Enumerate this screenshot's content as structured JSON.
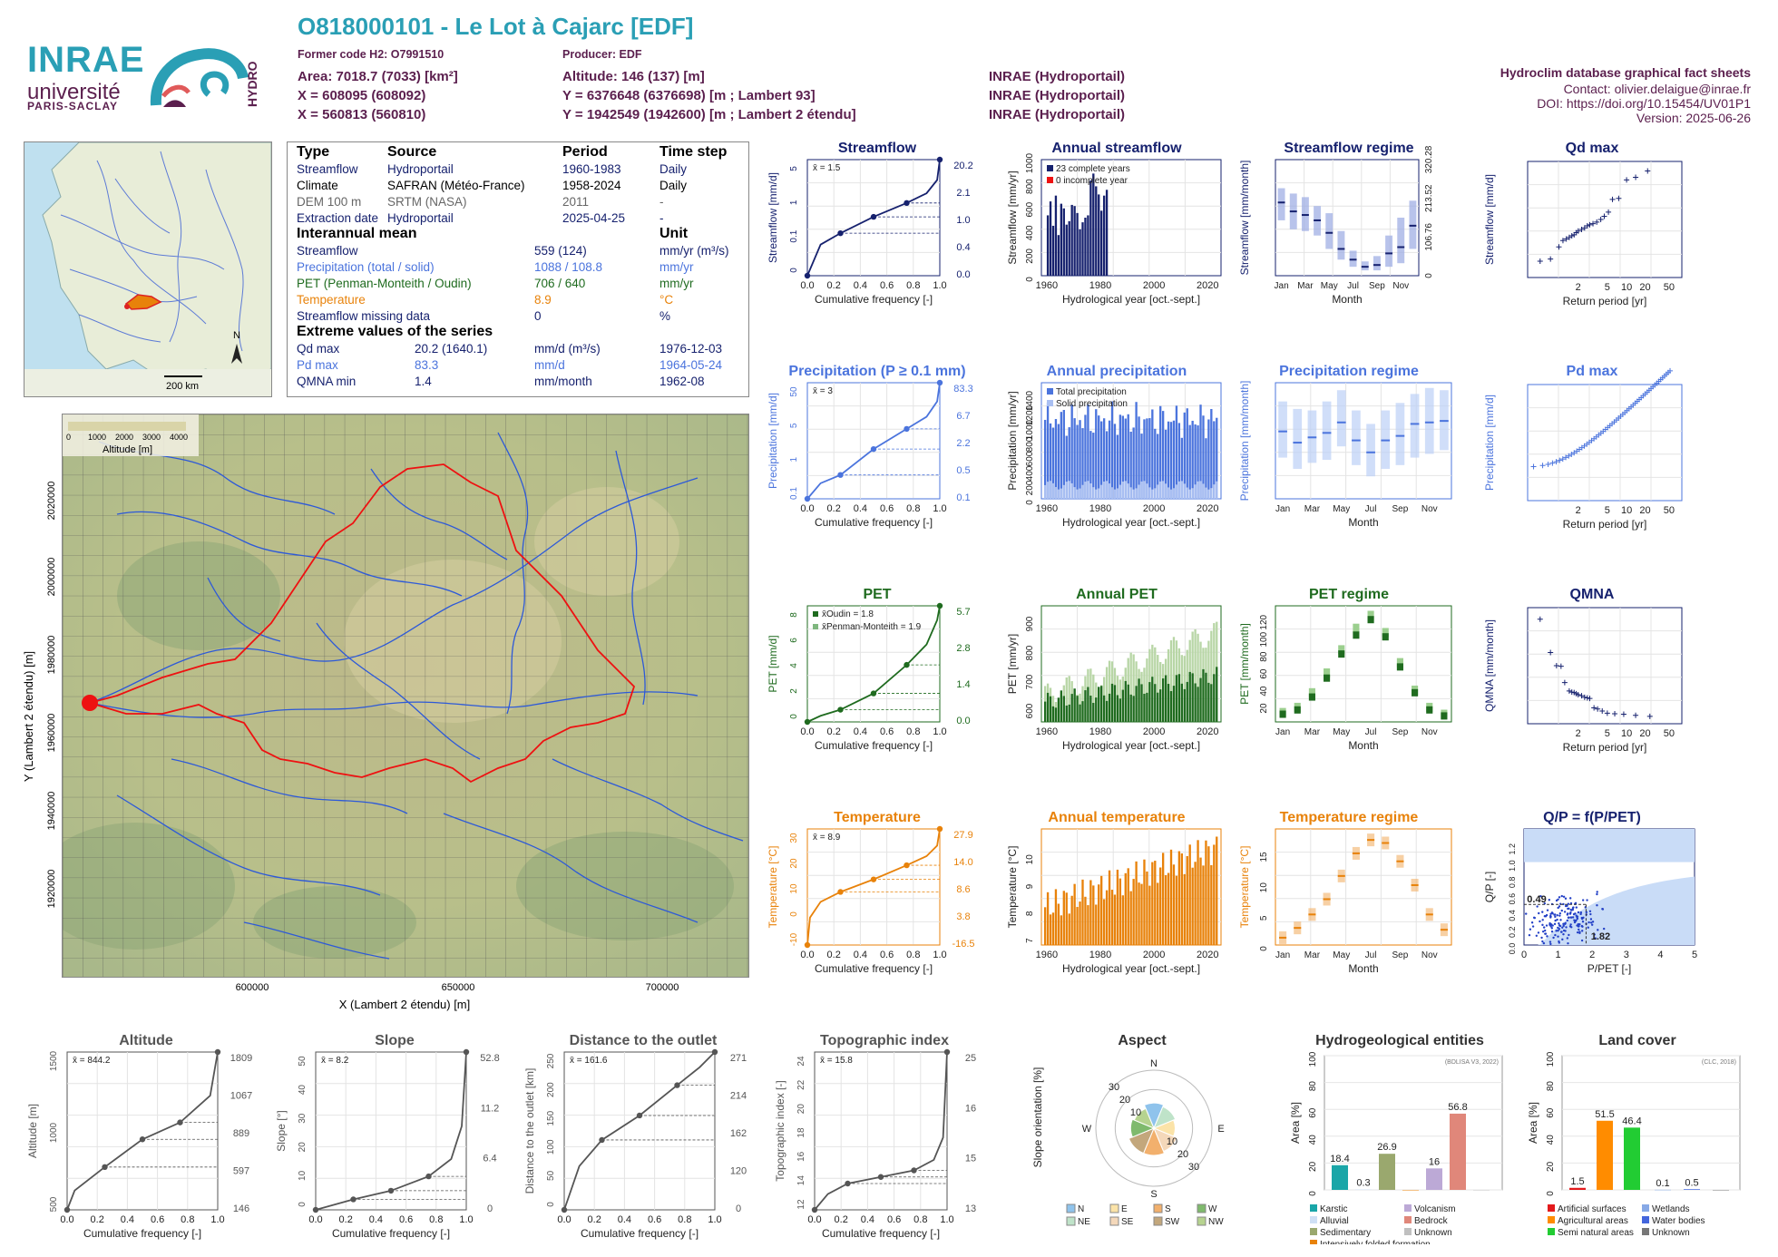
{
  "header": {
    "logo_inrae": "INRAE",
    "logo_univ": "université",
    "logo_ps": "PARIS-SACLAY",
    "logo_hydro": "HYDRO",
    "title": "O818000101 - Le Lot à Cajarc [EDF]",
    "former_code": "Former code H2: O7991510",
    "producer": "Producer: EDF",
    "area": "Area: 7018.7 (7033) [km²]",
    "x_l93": "X = 608095 (608092)",
    "x_l2": "X = 560813 (560810)",
    "altitude": "Altitude: 146 (137) [m]",
    "y_l93": "Y = 6376648 (6376698) [m ; Lambert 93]",
    "y_l2": "Y = 1942549 (1942600) [m ; Lambert 2 étendu]",
    "src1": "INRAE (Hydroportail)",
    "src2": "INRAE (Hydroportail)",
    "src3": "INRAE (Hydroportail)",
    "db": "Hydroclim database graphical fact sheets",
    "contact": "Contact: olivier.delaigue@inrae.fr",
    "doi": "DOI: https://doi.org/10.15454/UV01P1",
    "version": "Version: 2025-06-26"
  },
  "info": {
    "h_type": "Type",
    "h_source": "Source",
    "h_period": "Period",
    "h_timestep": "Time step",
    "r1": [
      "Streamflow",
      "Hydroportail",
      "1960-1983",
      "Daily"
    ],
    "r2": [
      "Climate",
      "SAFRAN (Météo-France)",
      "1958-2024",
      "Daily"
    ],
    "r3": [
      "DEM 100 m",
      "SRTM (NASA)",
      "2011",
      "-"
    ],
    "r4": [
      "Extraction date",
      "Hydroportail",
      "2025-04-25",
      "-"
    ],
    "sec_mean": "Interannual mean",
    "sec_unit": "Unit",
    "m1": [
      "Streamflow",
      "559 (124)",
      "mm/yr (m³/s)"
    ],
    "m2": [
      "Precipitation (total / solid)",
      "1088 / 108.8",
      "mm/yr"
    ],
    "m3": [
      "PET (Penman-Monteith / Oudin)",
      "706 / 640",
      "mm/yr"
    ],
    "m4": [
      "Temperature",
      "8.9",
      "°C"
    ],
    "m5": [
      "Streamflow missing data",
      "0",
      "%"
    ],
    "sec_ext": "Extreme values of the series",
    "e1": [
      "Qd max",
      "20.2 (1640.1)",
      "mm/d (m³/s)",
      "1976-12-03"
    ],
    "e2": [
      "Pd max",
      "83.3",
      "mm/d",
      "1964-05-24"
    ],
    "e3": [
      "QMNA min",
      "1.4",
      "mm/month",
      "1962-08"
    ]
  },
  "minimap": {
    "scale": "200 km",
    "north": "N"
  },
  "bigmap": {
    "legend_title": "Altitude [m]",
    "legend_ticks": [
      "0",
      "1000",
      "2000",
      "3000",
      "4000"
    ],
    "xlabel": "X (Lambert 2 étendu) [m]",
    "ylabel": "Y (Lambert 2 étendu) [m]",
    "xticks": [
      "600000",
      "650000",
      "700000"
    ],
    "yticks": [
      "2020000",
      "2000000",
      "1980000",
      "1960000",
      "1940000",
      "1920000"
    ]
  },
  "colors": {
    "teal": "#2a9fb5",
    "plum": "#5b1f4e",
    "navy": "#16216e",
    "blue": "#4b74dd",
    "green": "#1f6b1f",
    "orange": "#e8820a"
  },
  "chart_data": [
    {
      "id": "streamflow_fdc",
      "type": "line",
      "title": "Streamflow",
      "xlabel": "Cumulative frequency [-]",
      "ylabel": "Streamflow [mm/d]",
      "mean_label": "x̄ = 1.5",
      "x": [
        0,
        0.1,
        0.25,
        0.5,
        0.75,
        0.9,
        0.98,
        1.0
      ],
      "y": [
        0.0,
        0.2,
        0.4,
        1.0,
        2.1,
        3.5,
        7,
        20.2
      ],
      "right_labels": [
        "20.2",
        "2.1",
        "1.0",
        "0.4",
        "0.0"
      ],
      "yticks": [
        "0",
        "0.1",
        "1",
        "5"
      ],
      "log": true
    },
    {
      "id": "annual_streamflow",
      "type": "bar",
      "title": "Annual streamflow",
      "xlabel": "Hydrological year [oct.-sept.]",
      "ylabel": "Streamflow [mm/yr]",
      "legend": [
        "23 complete years",
        "0 incomplete year"
      ],
      "x_start": 1960,
      "x": [
        1960,
        1961,
        1962,
        1963,
        1964,
        1965,
        1966,
        1967,
        1968,
        1969,
        1970,
        1971,
        1972,
        1973,
        1974,
        1975,
        1976,
        1977,
        1978,
        1979,
        1980,
        1981,
        1982
      ],
      "values": [
        520,
        640,
        430,
        690,
        350,
        620,
        580,
        440,
        470,
        610,
        600,
        540,
        400,
        460,
        500,
        520,
        820,
        880,
        770,
        700,
        560,
        690,
        740
      ],
      "ylim": [
        0,
        1000
      ],
      "xlim": [
        1958,
        2025
      ],
      "yticks": [
        "0",
        "200",
        "400",
        "600",
        "800",
        "1000"
      ],
      "xticks": [
        "1960",
        "1980",
        "2000",
        "2020"
      ]
    },
    {
      "id": "streamflow_regime",
      "type": "bar",
      "title": "Streamflow regime",
      "xlabel": "Month",
      "ylabel": "Streamflow [mm/month]",
      "categories": [
        "Jan",
        "Feb",
        "Mar",
        "Apr",
        "May",
        "Jun",
        "Jul",
        "Aug",
        "Sep",
        "Oct",
        "Nov",
        "Dec"
      ],
      "median": [
        82,
        72,
        68,
        62,
        48,
        30,
        18,
        10,
        12,
        25,
        32,
        56
      ],
      "q10": [
        62,
        52,
        50,
        45,
        30,
        18,
        10,
        6,
        6,
        10,
        14,
        30
      ],
      "q90": [
        98,
        92,
        88,
        78,
        70,
        50,
        28,
        16,
        22,
        45,
        65,
        84
      ],
      "ylim": [
        0,
        130
      ],
      "right_ticks": [
        "0",
        "106.76",
        "213.52",
        "320.28"
      ]
    },
    {
      "id": "qd_max",
      "type": "scatter",
      "title": "Qd max",
      "xlabel": "Return period [yr]",
      "ylabel": "Streamflow [mm/d]",
      "xticks": [
        "2",
        "5",
        "10",
        "20",
        "50"
      ],
      "x": [
        1.05,
        1.15,
        1.3,
        1.4,
        1.5,
        1.6,
        1.7,
        1.8,
        1.9,
        2.0,
        2.2,
        2.4,
        2.6,
        2.8,
        3.1,
        3.5,
        4.0,
        4.5,
        5.2,
        6.0,
        7.5,
        10,
        14,
        22
      ],
      "values": [
        3.1,
        3.5,
        5.8,
        7.0,
        7.3,
        7.6,
        7.9,
        8.1,
        8.5,
        8.8,
        9.1,
        9.4,
        9.8,
        10.0,
        10.2,
        10.5,
        11.0,
        11.6,
        12.4,
        14.8,
        15.0,
        18.5,
        19.0,
        20.2
      ],
      "ylim": [
        0,
        22
      ]
    },
    {
      "id": "precip_fdc",
      "type": "line",
      "title": "Precipitation (P ≥ 0.1 mm)",
      "xlabel": "Cumulative frequency [-]",
      "ylabel": "Precipitation [mm/d]",
      "mean_label": "x̄ = 3",
      "x": [
        0,
        0.1,
        0.25,
        0.5,
        0.75,
        0.9,
        0.98,
        1.0
      ],
      "y": [
        0.1,
        0.3,
        0.5,
        2.2,
        6.7,
        13,
        30,
        83.3
      ],
      "right_labels": [
        "83.3",
        "6.7",
        "2.2",
        "0.5",
        "0.1"
      ],
      "yticks": [
        "0.1",
        "1",
        "5",
        "50"
      ],
      "log": true
    },
    {
      "id": "annual_precip",
      "type": "bar",
      "title": "Annual precipitation",
      "xlabel": "Hydrological year [oct.-sept.]",
      "ylabel": "Precipitation [mm/yr]",
      "legend": [
        "Total precipitation",
        "Solid precipitation"
      ],
      "x_start": 1959,
      "count": 65,
      "mean_total": 1088,
      "mean_solid": 108.8,
      "ylim": [
        0,
        1600
      ],
      "yticks": [
        "0",
        "200",
        "400",
        "600",
        "800",
        "1000",
        "1200",
        "1400"
      ],
      "xticks": [
        "1960",
        "1980",
        "2000",
        "2020"
      ]
    },
    {
      "id": "precip_regime",
      "type": "bar",
      "title": "Precipitation regime",
      "xlabel": "Month",
      "ylabel": "Precipitation [mm/month]",
      "categories": [
        "Jan",
        "Feb",
        "Mar",
        "Apr",
        "May",
        "Jun",
        "Jul",
        "Aug",
        "Sep",
        "Oct",
        "Nov",
        "Dec"
      ],
      "median": [
        90,
        75,
        82,
        88,
        102,
        78,
        62,
        78,
        84,
        100,
        102,
        104
      ],
      "q10": [
        55,
        40,
        48,
        52,
        70,
        45,
        30,
        40,
        45,
        55,
        60,
        65
      ],
      "q90": [
        130,
        120,
        118,
        130,
        145,
        118,
        100,
        118,
        128,
        140,
        148,
        145
      ],
      "ylim": [
        0,
        155
      ]
    },
    {
      "id": "pd_max",
      "type": "scatter",
      "title": "Pd max",
      "xlabel": "Return period [yr]",
      "ylabel": "Precipitation [mm/d]",
      "xticks": [
        "2",
        "5",
        "10",
        "20",
        "50"
      ],
      "ylim": [
        0,
        90
      ]
    },
    {
      "id": "pet_fdc",
      "type": "line",
      "title": "PET",
      "xlabel": "Cumulative frequency [-]",
      "ylabel": "PET [mm/d]",
      "legend": [
        "x̄Oudin = 1.8",
        "x̄Penman-Monteith = 1.9"
      ],
      "x": [
        0,
        0.1,
        0.25,
        0.5,
        0.75,
        0.9,
        0.98,
        1.0
      ],
      "y": [
        0.0,
        0.3,
        0.6,
        1.4,
        2.8,
        3.8,
        5.0,
        5.7
      ],
      "right_labels": [
        "5.7",
        "2.8",
        "1.4",
        "0.0"
      ],
      "yticks": [
        "0",
        "2",
        "4",
        "6",
        "8"
      ]
    },
    {
      "id": "annual_pet",
      "type": "bar",
      "title": "Annual PET",
      "xlabel": "Hydrological year [oct.-sept.]",
      "ylabel": "PET [mm/yr]",
      "ylim": [
        550,
        950
      ],
      "yticks": [
        "600",
        "700",
        "800",
        "900"
      ],
      "xticks": [
        "1960",
        "1980",
        "2000",
        "2020"
      ]
    },
    {
      "id": "pet_regime",
      "type": "bar",
      "title": "PET regime",
      "xlabel": "Month",
      "ylabel": "PET [mm/month]",
      "categories": [
        "Jan",
        "Feb",
        "Mar",
        "Apr",
        "May",
        "Jun",
        "Jul",
        "Aug",
        "Sep",
        "Oct",
        "Nov",
        "Dec"
      ],
      "oudin": [
        10,
        15,
        30,
        52,
        80,
        102,
        120,
        100,
        65,
        35,
        15,
        8
      ],
      "pm": [
        12,
        18,
        35,
        58,
        85,
        110,
        125,
        105,
        70,
        38,
        18,
        10
      ],
      "ylim": [
        0,
        135
      ],
      "yticks": [
        "20",
        "40",
        "60",
        "80",
        "100",
        "120"
      ]
    },
    {
      "id": "qmna",
      "type": "scatter",
      "title": "QMNA",
      "xlabel": "Return period [yr]",
      "ylabel": "QMNA [mm/month]",
      "xticks": [
        "2",
        "5",
        "10",
        "20",
        "50"
      ],
      "x": [
        1.05,
        1.15,
        1.25,
        1.35,
        1.45,
        1.6,
        1.7,
        1.8,
        1.9,
        2.0,
        2.2,
        2.4,
        2.6,
        2.8,
        3.2,
        3.6,
        4.2,
        5.0,
        6.5,
        9,
        14,
        24
      ],
      "values": [
        19.8,
        13.5,
        11.0,
        10.9,
        7.8,
        6.2,
        6.0,
        5.9,
        5.7,
        5.5,
        5.3,
        5.0,
        4.9,
        4.8,
        3.0,
        2.8,
        2.4,
        2.0,
        1.9,
        1.8,
        1.6,
        1.4
      ],
      "ylim": [
        0,
        22
      ]
    },
    {
      "id": "temp_fdc",
      "type": "line",
      "title": "Temperature",
      "xlabel": "Cumulative frequency [-]",
      "ylabel": "Temperature [°C]",
      "mean_label": "x̄ = 8.9",
      "x": [
        0,
        0.02,
        0.1,
        0.25,
        0.5,
        0.75,
        0.9,
        0.98,
        1.0
      ],
      "y": [
        -16.5,
        -6,
        0,
        3.8,
        8.6,
        14.0,
        17.5,
        21.5,
        27.9
      ],
      "right_labels": [
        "27.9",
        "14.0",
        "8.6",
        "3.8",
        "-16.5"
      ],
      "yticks": [
        "-10",
        "0",
        "10",
        "20",
        "30"
      ]
    },
    {
      "id": "annual_temp",
      "type": "bar",
      "title": "Annual temperature",
      "xlabel": "Hydrological year [oct.-sept.]",
      "ylabel": "Temperature [°C]",
      "ylim": [
        6.7,
        11
      ],
      "yticks": [
        "7",
        "8",
        "9",
        "10"
      ],
      "xticks": [
        "1960",
        "1980",
        "2000",
        "2020"
      ]
    },
    {
      "id": "temp_regime",
      "type": "bar",
      "title": "Temperature regime",
      "xlabel": "Month",
      "ylabel": "Temperature [°C]",
      "categories": [
        "Jan",
        "Feb",
        "Mar",
        "Apr",
        "May",
        "Jun",
        "Jul",
        "Aug",
        "Sep",
        "Oct",
        "Nov",
        "Dec"
      ],
      "median": [
        1.2,
        2.8,
        5.0,
        7.5,
        11.3,
        15.0,
        17.2,
        16.7,
        13.7,
        9.8,
        5.0,
        2.5
      ],
      "ylim": [
        0,
        19
      ],
      "yticks": [
        "0",
        "5",
        "10",
        "15"
      ]
    },
    {
      "id": "qp_ppet",
      "type": "scatter",
      "title": "Q/P = f(P/PET)",
      "xlabel": "P/PET [-]",
      "ylabel": "Q/P [-]",
      "annotations": [
        "0.49",
        "1.82"
      ],
      "xticks": [
        "0",
        "1",
        "2",
        "3",
        "4",
        "5"
      ],
      "yticks": [
        "0.0",
        "0.2",
        "0.4",
        "0.6",
        "0.8",
        "1.0",
        "1.2"
      ]
    },
    {
      "id": "altitude_curve",
      "type": "line",
      "title": "Altitude",
      "xlabel": "Cumulative frequency [-]",
      "ylabel": "Altitude [m]",
      "mean_label": "x̄ = 844.2",
      "x": [
        0,
        0.05,
        0.25,
        0.5,
        0.75,
        0.95,
        1.0
      ],
      "y": [
        146,
        350,
        597,
        889,
        1067,
        1350,
        1809
      ],
      "right_labels": [
        "1809",
        "1067",
        "889",
        "597",
        "146"
      ],
      "yticks": [
        "500",
        "1000",
        "1500"
      ]
    },
    {
      "id": "slope_curve",
      "type": "line",
      "title": "Slope",
      "xlabel": "Cumulative frequency [-]",
      "ylabel": "Slope [°]",
      "mean_label": "x̄ = 8.2",
      "x": [
        0,
        0.25,
        0.5,
        0.75,
        0.9,
        0.97,
        1.0
      ],
      "y": [
        0,
        3.5,
        6.4,
        11.2,
        17,
        28,
        52.8
      ],
      "right_labels": [
        "52.8",
        "11.2",
        "6.4",
        "0"
      ],
      "yticks": [
        "0",
        "10",
        "20",
        "30",
        "40",
        "50"
      ]
    },
    {
      "id": "distance_curve",
      "type": "line",
      "title": "Distance to the outlet",
      "xlabel": "Cumulative frequency [-]",
      "ylabel": "Distance to the outlet [km]",
      "mean_label": "x̄ = 161.6",
      "x": [
        0,
        0.1,
        0.25,
        0.5,
        0.75,
        0.9,
        1.0
      ],
      "y": [
        0,
        75,
        120,
        162,
        214,
        245,
        271
      ],
      "right_labels": [
        "271",
        "214",
        "162",
        "120",
        "0"
      ],
      "yticks": [
        "0",
        "50",
        "100",
        "150",
        "200",
        "250"
      ]
    },
    {
      "id": "topo_curve",
      "type": "line",
      "title": "Topographic index",
      "xlabel": "Cumulative frequency [-]",
      "ylabel": "Topographic index [-]",
      "mean_label": "x̄ = 15.8",
      "x": [
        0,
        0.1,
        0.25,
        0.5,
        0.75,
        0.9,
        0.97,
        1.0
      ],
      "y": [
        13,
        14.2,
        15,
        15.5,
        16,
        16.8,
        18.5,
        25
      ],
      "right_labels": [
        "25",
        "16",
        "15",
        "13"
      ],
      "yticks": [
        "12",
        "14",
        "16",
        "18",
        "20",
        "22",
        "24"
      ]
    },
    {
      "id": "aspect",
      "type": "pie",
      "title": "Aspect",
      "ylabel": "Slope orientation [%]",
      "categories": [
        "N",
        "NE",
        "E",
        "SE",
        "S",
        "SW",
        "W",
        "NW"
      ],
      "values": [
        13,
        12,
        11,
        13,
        14,
        14,
        12,
        11
      ],
      "legend": [
        "N",
        "E",
        "S",
        "W",
        "NE",
        "SE",
        "SW",
        "NW"
      ],
      "rings": [
        "10",
        "20",
        "30"
      ]
    },
    {
      "id": "hydrogeology",
      "type": "bar",
      "title": "Hydrogeological entities",
      "ylabel": "Area [%]",
      "source_note": "(BDLISA V3, 2022)",
      "categories": [
        "Karstic",
        "Alluvial",
        "Sedimentary",
        "Intensively folded formation",
        "Volcanism",
        "Bedrock",
        "Unknown"
      ],
      "values": [
        18.4,
        0.3,
        26.9,
        0,
        16,
        56.8,
        0
      ],
      "labels": [
        "18.4",
        "0.3",
        "26.9",
        "16",
        "56.8"
      ],
      "ylim": [
        0,
        100
      ],
      "yticks": [
        "0",
        "20",
        "40",
        "60",
        "80",
        "100"
      ],
      "legend": [
        "Karstic",
        "Volcanism",
        "Alluvial",
        "Bedrock",
        "Sedimentary",
        "Unknown",
        "Intensively folded formation"
      ]
    },
    {
      "id": "land_cover",
      "type": "bar",
      "title": "Land cover",
      "ylabel": "Area [%]",
      "source_note": "(CLC, 2018)",
      "categories": [
        "Artificial surfaces",
        "Agricultural areas",
        "Semi natural areas",
        "Wetlands",
        "Water bodies",
        "Unknown"
      ],
      "values": [
        1.5,
        51.5,
        46.4,
        0.1,
        0.5,
        0
      ],
      "labels": [
        "1.5",
        "51.5",
        "46.4",
        "0.1",
        "0.5"
      ],
      "ylim": [
        0,
        100
      ],
      "yticks": [
        "0",
        "20",
        "40",
        "60",
        "80",
        "100"
      ],
      "legend": [
        "Artificial surfaces",
        "Wetlands",
        "Agricultural areas",
        "Water bodies",
        "Semi natural areas",
        "Unknown"
      ]
    }
  ]
}
